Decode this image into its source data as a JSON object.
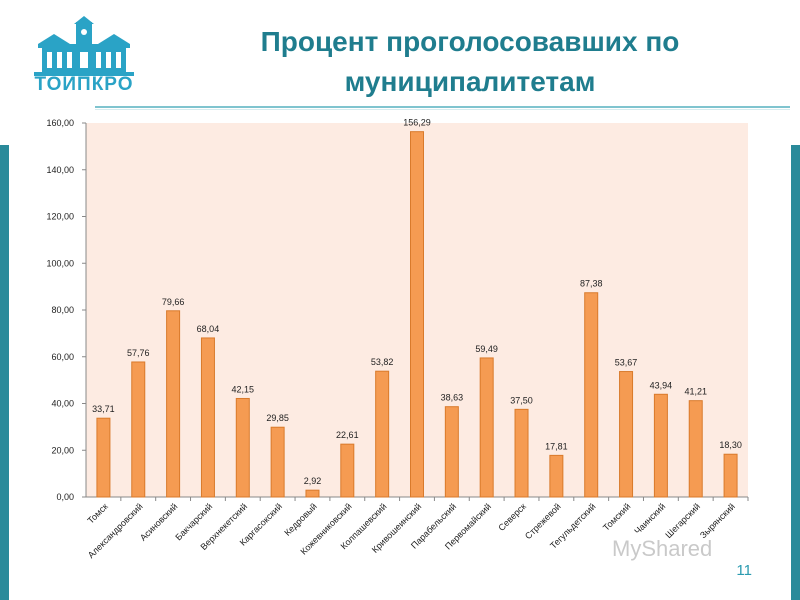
{
  "header": {
    "logo_text": "ТОИПКРО",
    "title_line1": "Процент проголосовавших по",
    "title_line2": "муниципалитетам"
  },
  "footer": {
    "page_number": "11",
    "watermark": "MyShared"
  },
  "colors": {
    "accent": "#2a8a9a",
    "title": "#1f7d8e",
    "bar_fill": "#f59b52",
    "bar_stroke": "#d97a2b",
    "plot_bg": "#fdebe2"
  },
  "chart_data": {
    "type": "bar",
    "title": "Процент проголосовавших по муниципалитетам",
    "xlabel": "",
    "ylabel": "",
    "ylim": [
      0,
      160
    ],
    "yticks": [
      "0,00",
      "20,00",
      "40,00",
      "60,00",
      "80,00",
      "100,00",
      "120,00",
      "140,00",
      "160,00"
    ],
    "grid": false,
    "categories": [
      "Томск",
      "Александровский",
      "Асиновский",
      "Бакчарский",
      "Верхнекетский",
      "Каргасокский",
      "Кедровый",
      "Кожевниковский",
      "Колпашевский",
      "Кривошеинский",
      "Парабельский",
      "Первомайский",
      "Северск",
      "Стрежевой",
      "Тегульдетский",
      "Томский",
      "Чаинский",
      "Шегарский",
      "Зырянский"
    ],
    "values": [
      33.71,
      57.76,
      79.66,
      68.04,
      42.15,
      29.85,
      2.92,
      22.61,
      53.82,
      156.29,
      38.63,
      59.49,
      37.5,
      17.81,
      87.38,
      53.67,
      43.94,
      41.21,
      18.3
    ],
    "value_labels": [
      "33,71",
      "57,76",
      "79,66",
      "68,04",
      "42,15",
      "29,85",
      "2,92",
      "22,61",
      "53,82",
      "156,29",
      "38,63",
      "59,49",
      "37,50",
      "17,81",
      "87,38",
      "53,67",
      "43,94",
      "41,21",
      "18,30"
    ]
  }
}
